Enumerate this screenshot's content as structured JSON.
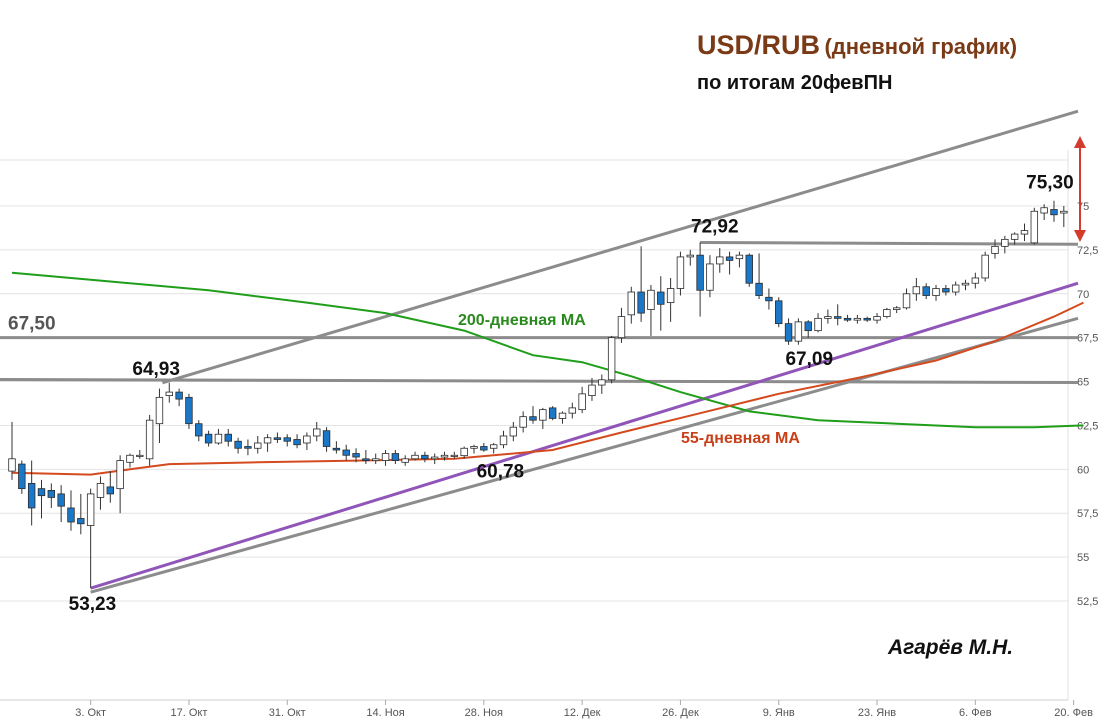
{
  "title": {
    "main": "USD/RUB",
    "paren": "(дневной график)"
  },
  "subtitle": "по итогам 20февПН",
  "author": "Агарёв М.Н.",
  "chart_data": {
    "type": "candlestick",
    "title": "USD/RUB (дневной график)",
    "y_ticks": [
      "52,5",
      "55",
      "57,5",
      "60",
      "62,5",
      "65",
      "67,5",
      "70",
      "72,5",
      "75"
    ],
    "y_tick_values": [
      52.5,
      55,
      57.5,
      60,
      62.5,
      65,
      67.5,
      70,
      72.5,
      75
    ],
    "ylim": [
      52.5,
      75
    ],
    "x_ticks": [
      "3. Окт",
      "17. Окт",
      "31. Окт",
      "14. Ноя",
      "28. Ноя",
      "12. Дек",
      "26. Дек",
      "9. Янв",
      "23. Янв",
      "6. Фев",
      "20. Фев"
    ],
    "grid": true,
    "candles": [
      [
        59.9,
        62.7,
        59.4,
        60.6
      ],
      [
        60.3,
        60.5,
        58.6,
        58.9
      ],
      [
        59.2,
        60.5,
        56.8,
        57.8
      ],
      [
        58.9,
        59.4,
        57.2,
        58.5
      ],
      [
        58.8,
        59.2,
        57.8,
        58.4
      ],
      [
        58.6,
        59.1,
        57.0,
        57.9
      ],
      [
        57.8,
        58.8,
        56.5,
        57.0
      ],
      [
        57.2,
        58.6,
        56.3,
        56.9
      ],
      [
        56.8,
        58.9,
        53.23,
        58.6
      ],
      [
        58.4,
        59.6,
        57.7,
        59.2
      ],
      [
        59.0,
        59.9,
        58.1,
        58.6
      ],
      [
        58.9,
        60.8,
        57.5,
        60.5
      ],
      [
        60.4,
        60.9,
        60.1,
        60.8
      ],
      [
        60.8,
        61.1,
        60.6,
        60.8
      ],
      [
        60.6,
        63.1,
        60.2,
        62.8
      ],
      [
        62.6,
        64.6,
        61.5,
        64.1
      ],
      [
        64.2,
        64.93,
        63.8,
        64.4
      ],
      [
        64.4,
        64.6,
        63.6,
        64.0
      ],
      [
        64.1,
        64.3,
        62.3,
        62.6
      ],
      [
        62.6,
        62.8,
        61.6,
        61.9
      ],
      [
        62.0,
        62.2,
        61.3,
        61.5
      ],
      [
        61.5,
        62.3,
        61.4,
        62.0
      ],
      [
        62.0,
        62.3,
        61.3,
        61.6
      ],
      [
        61.6,
        61.8,
        60.9,
        61.2
      ],
      [
        61.3,
        61.7,
        60.8,
        61.2
      ],
      [
        61.2,
        61.9,
        60.9,
        61.5
      ],
      [
        61.5,
        62.0,
        61.0,
        61.8
      ],
      [
        61.8,
        62.1,
        61.5,
        61.7
      ],
      [
        61.8,
        62.0,
        61.3,
        61.6
      ],
      [
        61.7,
        62.0,
        61.2,
        61.4
      ],
      [
        61.5,
        62.1,
        61.1,
        61.9
      ],
      [
        61.9,
        62.7,
        61.6,
        62.3
      ],
      [
        62.2,
        62.4,
        61.0,
        61.3
      ],
      [
        61.2,
        61.6,
        60.9,
        61.1
      ],
      [
        61.1,
        61.4,
        60.5,
        60.8
      ],
      [
        60.9,
        61.2,
        60.4,
        60.7
      ],
      [
        60.6,
        61.1,
        60.3,
        60.5
      ],
      [
        60.5,
        60.9,
        60.3,
        60.6
      ],
      [
        60.5,
        61.1,
        60.2,
        60.9
      ],
      [
        60.9,
        61.1,
        60.3,
        60.5
      ],
      [
        60.4,
        60.8,
        60.2,
        60.6
      ],
      [
        60.6,
        61.0,
        60.5,
        60.8
      ],
      [
        60.8,
        61.0,
        60.4,
        60.6
      ],
      [
        60.6,
        60.9,
        60.3,
        60.7
      ],
      [
        60.7,
        61.0,
        60.5,
        60.8
      ],
      [
        60.8,
        61.0,
        60.6,
        60.8
      ],
      [
        60.78,
        61.3,
        60.6,
        61.2
      ],
      [
        61.2,
        61.4,
        60.9,
        61.3
      ],
      [
        61.3,
        61.5,
        61.0,
        61.1
      ],
      [
        61.2,
        61.5,
        60.9,
        61.4
      ],
      [
        61.4,
        62.2,
        61.2,
        61.9
      ],
      [
        61.9,
        62.7,
        61.6,
        62.4
      ],
      [
        62.4,
        63.3,
        62.1,
        63.0
      ],
      [
        63.0,
        63.6,
        62.6,
        62.8
      ],
      [
        62.8,
        63.5,
        62.3,
        63.4
      ],
      [
        63.5,
        63.6,
        62.8,
        62.9
      ],
      [
        62.9,
        63.3,
        62.6,
        63.2
      ],
      [
        63.2,
        63.8,
        62.9,
        63.5
      ],
      [
        63.4,
        64.7,
        63.2,
        64.3
      ],
      [
        64.2,
        65.2,
        63.9,
        64.8
      ],
      [
        64.8,
        65.4,
        64.3,
        65.1
      ],
      [
        65.1,
        67.6,
        64.9,
        67.5
      ],
      [
        67.5,
        69.2,
        67.2,
        68.7
      ],
      [
        68.8,
        70.4,
        68.3,
        70.1
      ],
      [
        70.1,
        72.7,
        68.4,
        68.9
      ],
      [
        69.1,
        70.5,
        67.6,
        70.2
      ],
      [
        70.1,
        71.0,
        67.9,
        69.4
      ],
      [
        69.5,
        70.9,
        68.4,
        70.3
      ],
      [
        70.3,
        72.4,
        69.9,
        72.1
      ],
      [
        72.1,
        72.5,
        71.6,
        72.2
      ],
      [
        72.2,
        72.92,
        68.7,
        70.2
      ],
      [
        70.2,
        72.2,
        69.8,
        71.7
      ],
      [
        71.7,
        72.6,
        71.2,
        72.1
      ],
      [
        72.1,
        72.4,
        71.1,
        71.9
      ],
      [
        72.0,
        72.4,
        71.5,
        72.2
      ],
      [
        72.2,
        72.3,
        70.4,
        70.6
      ],
      [
        70.6,
        72.3,
        69.7,
        69.9
      ],
      [
        69.8,
        70.3,
        69.1,
        69.6
      ],
      [
        69.6,
        69.8,
        68.1,
        68.3
      ],
      [
        68.3,
        68.6,
        67.09,
        67.3
      ],
      [
        67.3,
        68.6,
        67.1,
        68.4
      ],
      [
        68.4,
        68.5,
        67.5,
        67.9
      ],
      [
        67.9,
        68.9,
        67.8,
        68.6
      ],
      [
        68.6,
        69.1,
        68.3,
        68.7
      ],
      [
        68.7,
        69.4,
        68.2,
        68.6
      ],
      [
        68.6,
        68.8,
        68.4,
        68.5
      ],
      [
        68.5,
        68.8,
        68.3,
        68.6
      ],
      [
        68.6,
        68.7,
        68.4,
        68.5
      ],
      [
        68.5,
        68.9,
        68.3,
        68.7
      ],
      [
        68.7,
        69.2,
        68.6,
        69.1
      ],
      [
        69.1,
        69.3,
        68.9,
        69.2
      ],
      [
        69.2,
        70.3,
        69.1,
        70.0
      ],
      [
        70.0,
        70.9,
        69.6,
        70.4
      ],
      [
        70.4,
        70.6,
        69.7,
        69.9
      ],
      [
        69.9,
        70.5,
        69.6,
        70.3
      ],
      [
        70.3,
        70.5,
        69.9,
        70.1
      ],
      [
        70.1,
        70.7,
        69.9,
        70.5
      ],
      [
        70.5,
        70.8,
        70.2,
        70.6
      ],
      [
        70.6,
        71.2,
        70.3,
        70.9
      ],
      [
        70.9,
        72.4,
        70.7,
        72.2
      ],
      [
        72.3,
        73.1,
        72.0,
        72.7
      ],
      [
        72.7,
        73.3,
        72.3,
        73.1
      ],
      [
        73.1,
        73.5,
        72.8,
        73.4
      ],
      [
        73.4,
        74.0,
        73.0,
        73.6
      ],
      [
        72.9,
        74.9,
        72.8,
        74.7
      ],
      [
        74.6,
        75.1,
        74.2,
        74.9
      ],
      [
        74.8,
        75.3,
        74.1,
        74.5
      ],
      [
        74.6,
        75.0,
        73.8,
        74.7
      ]
    ],
    "ma200_name": "200-дневная МА",
    "ma200": [
      [
        0,
        71.2
      ],
      [
        10,
        70.7
      ],
      [
        20,
        70.2
      ],
      [
        30,
        69.5
      ],
      [
        38,
        68.9
      ],
      [
        46,
        67.9
      ],
      [
        53,
        66.5
      ],
      [
        58,
        66.1
      ],
      [
        63,
        65.3
      ],
      [
        68,
        64.4
      ],
      [
        75,
        63.3
      ],
      [
        82,
        62.8
      ],
      [
        90,
        62.6
      ],
      [
        98,
        62.4
      ],
      [
        104,
        62.4
      ],
      [
        109,
        62.5
      ]
    ],
    "ma55_name": "55-дневная МА",
    "ma55": [
      [
        0,
        59.8
      ],
      [
        8,
        59.7
      ],
      [
        12,
        60.0
      ],
      [
        16,
        60.3
      ],
      [
        25,
        60.4
      ],
      [
        35,
        60.5
      ],
      [
        45,
        60.6
      ],
      [
        55,
        61.1
      ],
      [
        62,
        62.1
      ],
      [
        70,
        63.2
      ],
      [
        78,
        64.3
      ],
      [
        86,
        65.2
      ],
      [
        94,
        66.2
      ],
      [
        100,
        67.3
      ],
      [
        106,
        68.7
      ],
      [
        109,
        69.5
      ]
    ],
    "levels": [
      {
        "label": "67,50",
        "value": 67.5
      },
      {
        "label": "",
        "value": 65.0
      }
    ],
    "annotations": [
      "53,23",
      "64,93",
      "60,78",
      "72,92",
      "67,09",
      "75,30"
    ],
    "ma200_label": "200-дневная МА",
    "ma55_label": "55-дневная МА",
    "colors": {
      "bear": "#1b78c8",
      "bull": "#ffffff",
      "ma200": "#1f9e1a",
      "ma55": "#d44a1f",
      "trend_purple": "#9055b8",
      "trend_gray": "#8c8c8c",
      "arrow": "#d43b2c"
    }
  }
}
